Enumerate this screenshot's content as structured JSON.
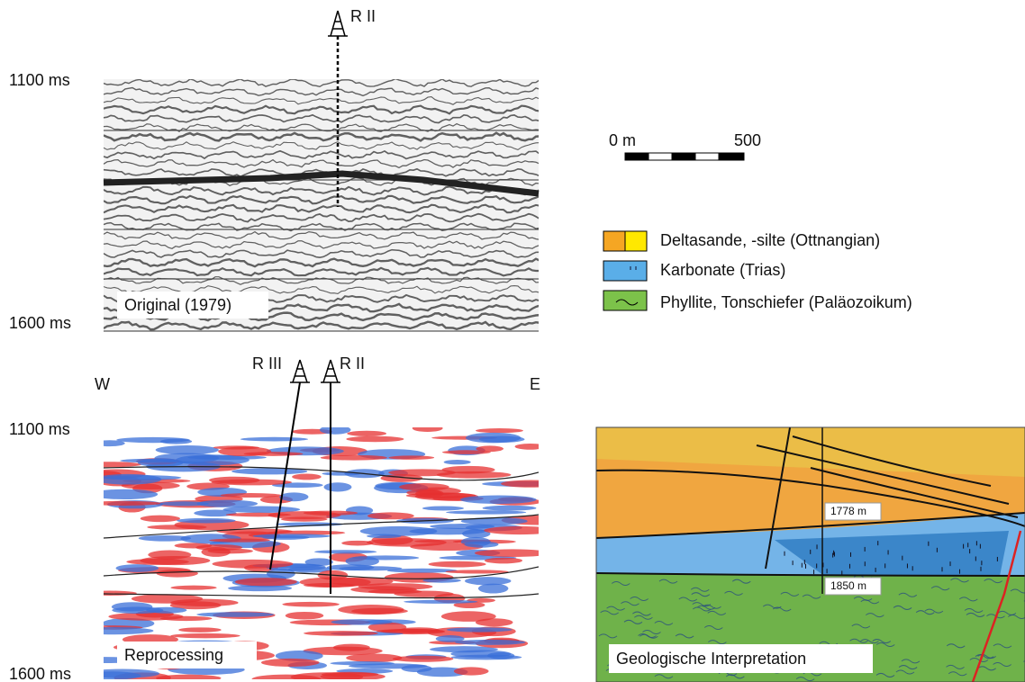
{
  "original_panel": {
    "well": "R II",
    "top_time": "1100 ms",
    "bottom_time": "1600 ms",
    "label": "Original (1979)"
  },
  "scale_bar": {
    "start": "0 m",
    "end": "500"
  },
  "legend": {
    "items": [
      "Deltasande, -silte (Ottnangian)",
      "Karbonate (Trias)",
      "Phyllite, Tonschiefer (Paläozoikum)"
    ]
  },
  "reprocessed_panel": {
    "wells": [
      "R III",
      "R II"
    ],
    "west": "W",
    "east": "E",
    "top_time": "1100 ms",
    "bottom_time": "1600 ms",
    "label": "Reprocessing"
  },
  "interpretation_panel": {
    "depth_labels": [
      "1778 m",
      "1850 m"
    ],
    "label": "Geologische Interpretation"
  }
}
